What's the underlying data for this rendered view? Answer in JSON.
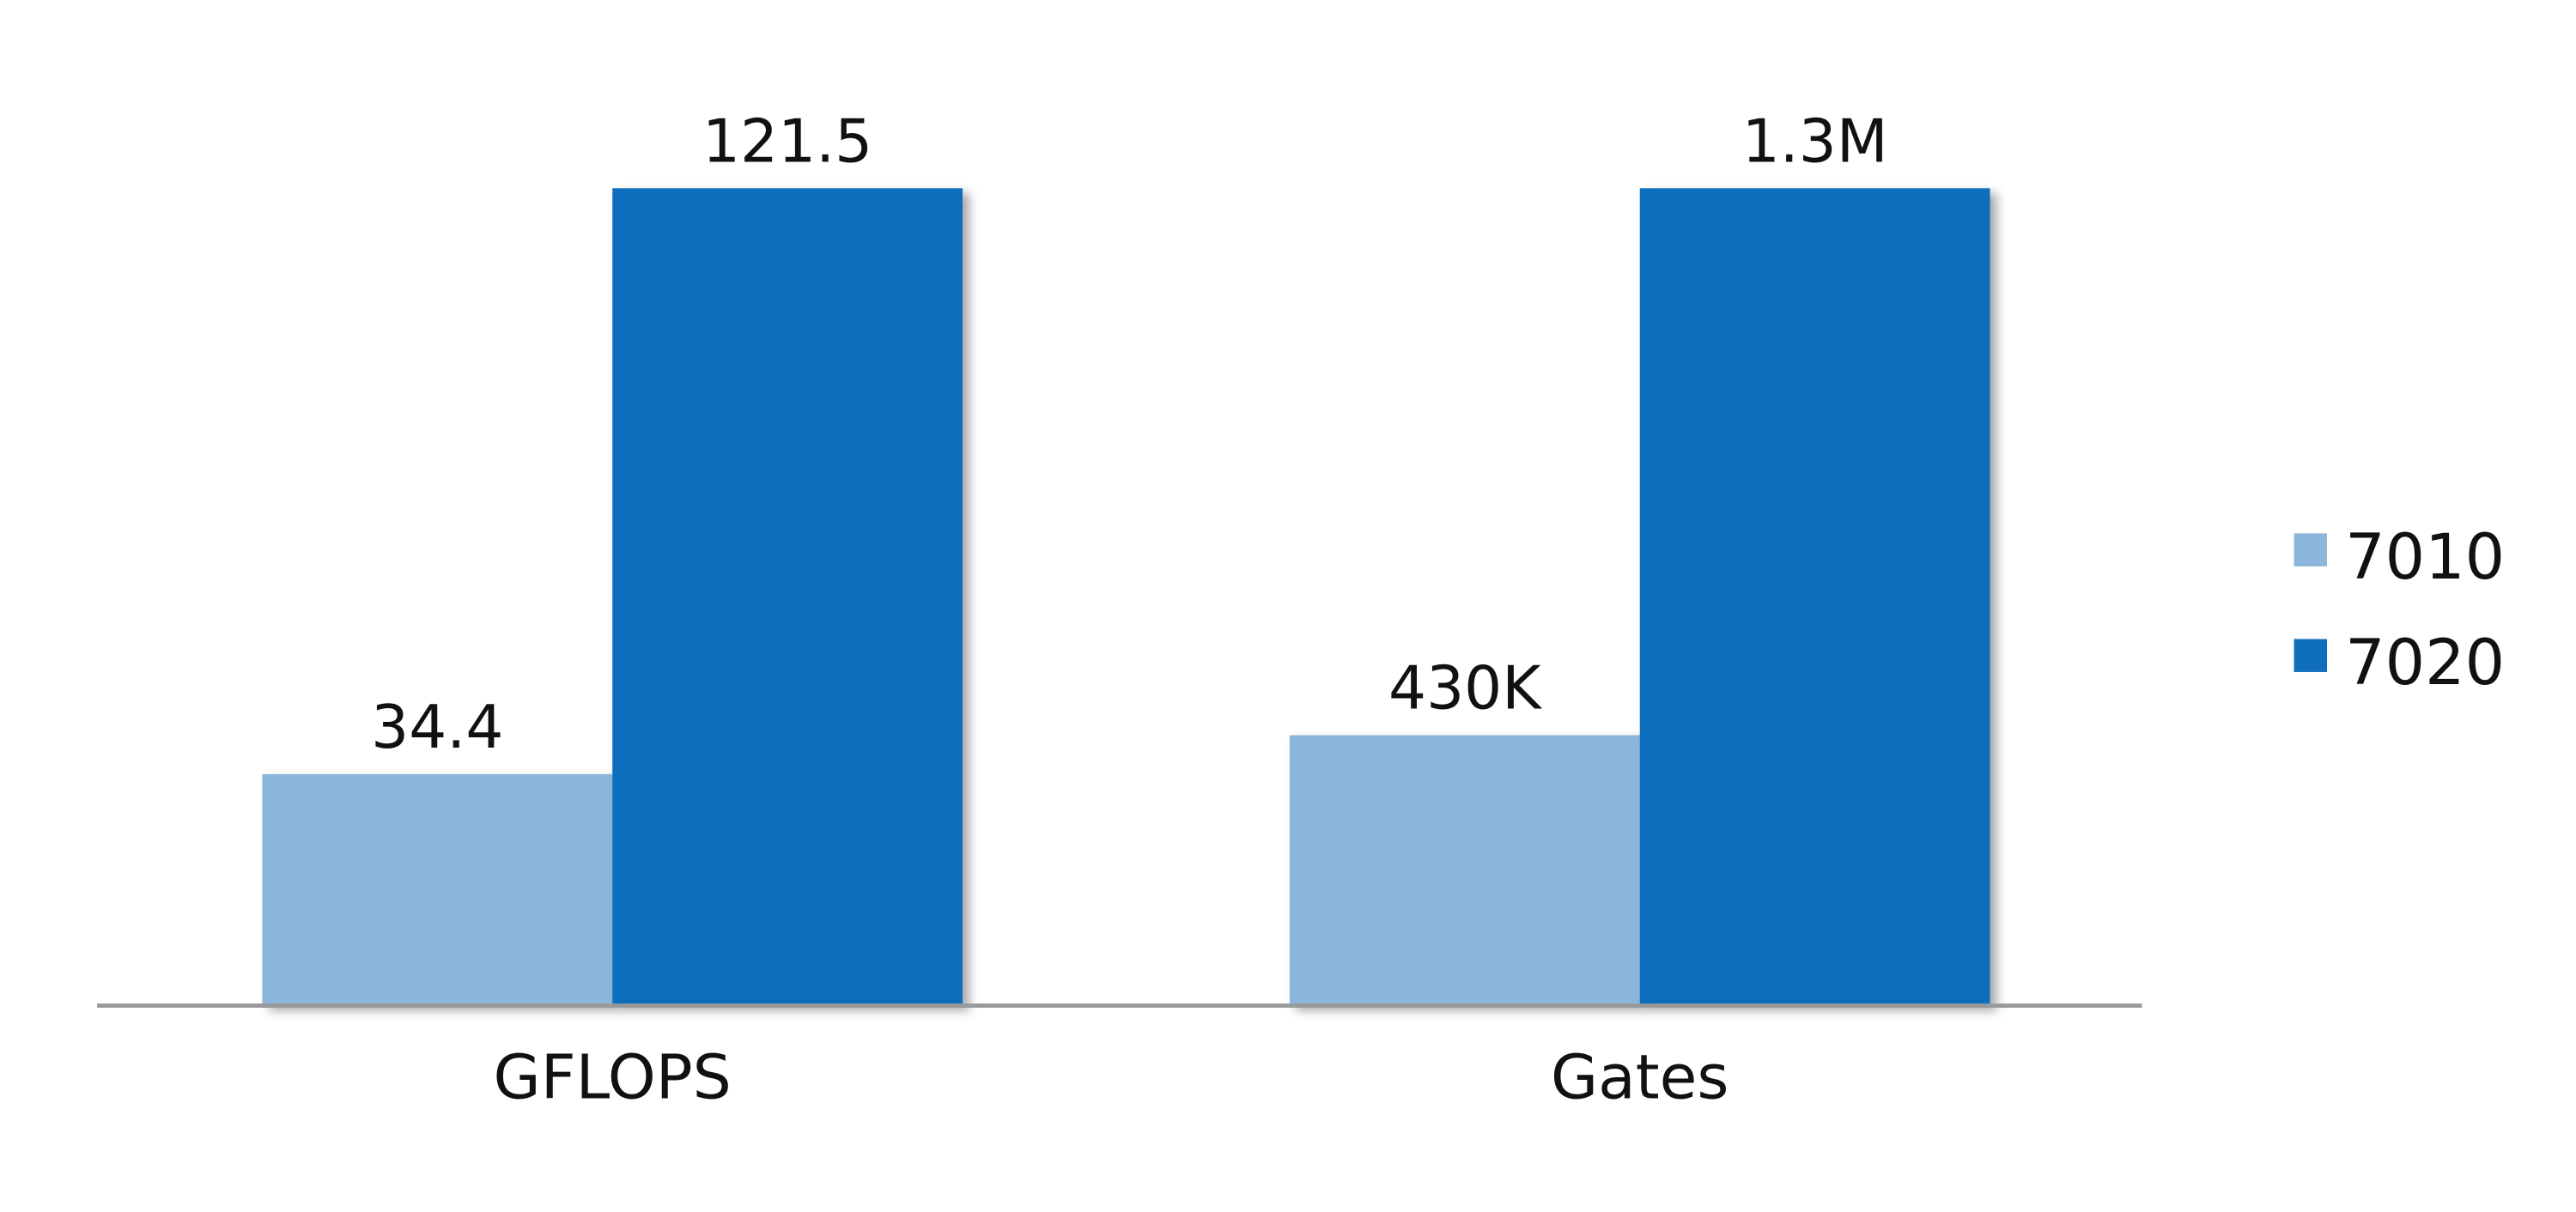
{
  "chart_data": {
    "type": "bar",
    "categories": [
      "GFLOPS",
      "Gates"
    ],
    "series": [
      {
        "name": "7010",
        "color": "#8cb6db",
        "values": [
          34.4,
          430000
        ],
        "value_labels": [
          "34.4",
          "430K"
        ]
      },
      {
        "name": "7020",
        "color": "#106ebe",
        "values": [
          121.5,
          1300000
        ],
        "value_labels": [
          "121.5",
          "1.3M"
        ]
      }
    ],
    "legend": "right"
  }
}
